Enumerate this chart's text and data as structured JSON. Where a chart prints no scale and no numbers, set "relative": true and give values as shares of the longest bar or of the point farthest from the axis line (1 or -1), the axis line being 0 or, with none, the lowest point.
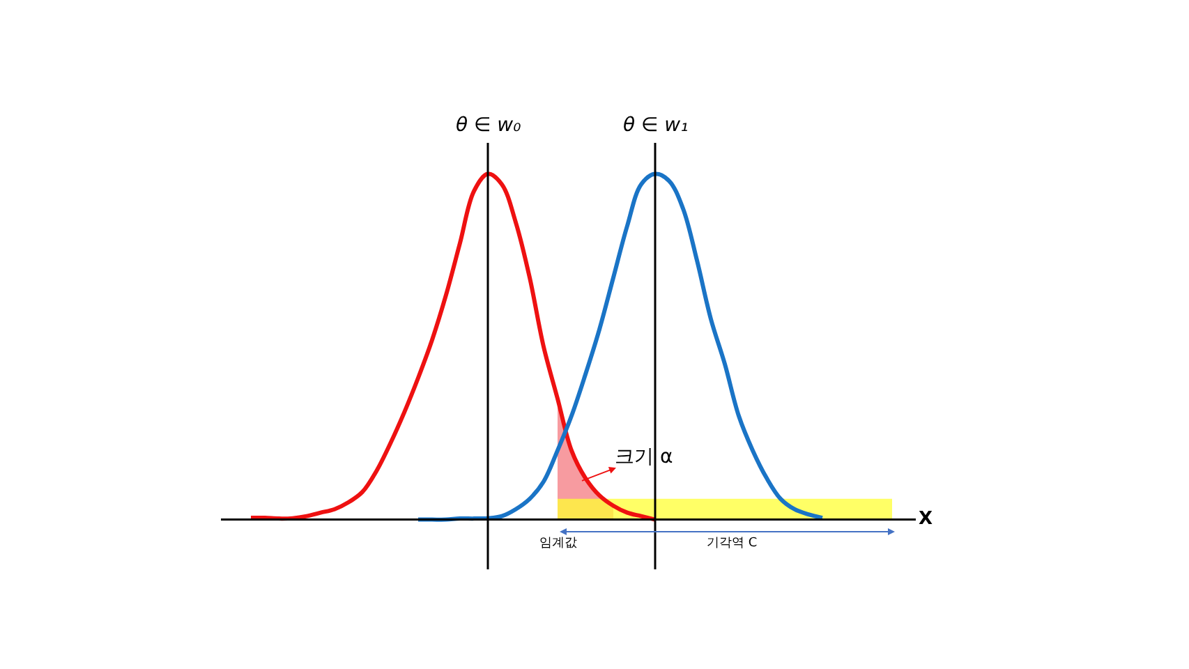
{
  "chart_data": {
    "type": "line",
    "relative": true,
    "legend": false,
    "xlabel": "X",
    "categories": [
      null,
      null,
      null,
      null,
      null,
      null,
      null,
      null,
      null,
      null,
      null,
      null,
      null,
      null,
      null,
      null,
      null,
      null,
      null,
      null,
      null,
      null,
      null,
      null,
      null,
      null,
      null,
      null,
      null,
      null,
      null,
      null,
      null,
      null,
      null,
      null,
      null,
      null,
      null,
      null,
      null,
      null,
      null,
      null,
      null,
      null,
      null,
      null,
      null,
      null
    ],
    "series": [
      {
        "type": "area",
        "color": "#f47a80",
        "values": [
          null,
          null,
          null,
          null,
          null,
          null,
          null,
          null,
          null,
          null,
          null,
          null,
          null,
          null,
          null,
          null,
          null,
          null,
          null,
          null,
          null,
          null,
          null,
          null,
          0.35,
          0.2,
          0.12,
          0.07,
          0.04,
          null,
          null,
          null,
          null,
          null,
          null,
          null,
          null,
          null,
          null,
          null,
          null,
          null,
          null,
          null,
          null,
          null,
          null,
          null,
          null,
          null
        ]
      },
      {
        "type": "area",
        "color": "#ffff33",
        "values": [
          null,
          null,
          null,
          null,
          null,
          null,
          null,
          null,
          null,
          null,
          null,
          null,
          null,
          null,
          null,
          null,
          null,
          null,
          null,
          null,
          null,
          null,
          null,
          null,
          0.06,
          0.06,
          0.06,
          0.06,
          0.06,
          0.06,
          0.06,
          0.06,
          0.06,
          0.06,
          0.06,
          0.06,
          0.06,
          0.06,
          0.06,
          0.06,
          0.06,
          0.06,
          0.06,
          0.06,
          0.06,
          0.06,
          0.06,
          0.06,
          0.06,
          null
        ]
      },
      {
        "name": "θ ∈ w₀",
        "color": "#ee1111",
        "values": [
          null,
          null,
          0.005,
          0.005,
          0.003,
          0.004,
          0.01,
          0.02,
          0.03,
          0.05,
          0.08,
          0.14,
          0.22,
          0.31,
          0.41,
          0.52,
          0.65,
          0.8,
          0.95,
          1.0,
          0.97,
          0.86,
          0.7,
          0.5,
          0.35,
          0.2,
          0.12,
          0.07,
          0.04,
          0.02,
          0.01,
          0.0,
          null,
          null,
          null,
          null,
          null,
          null,
          null,
          null,
          null,
          null,
          null,
          null,
          null,
          null,
          null,
          null,
          null,
          null
        ]
      },
      {
        "name": "θ ∈ w₁",
        "color": "#1a74c6",
        "values": [
          null,
          null,
          null,
          null,
          null,
          null,
          null,
          null,
          null,
          null,
          null,
          null,
          null,
          null,
          0.0,
          0.0,
          0.0,
          0.003,
          0.003,
          0.004,
          0.01,
          0.03,
          0.06,
          0.11,
          0.2,
          0.3,
          0.42,
          0.55,
          0.7,
          0.85,
          0.97,
          1.0,
          0.98,
          0.9,
          0.75,
          0.58,
          0.45,
          0.3,
          0.2,
          0.12,
          0.06,
          0.03,
          0.015,
          0.005,
          null,
          null,
          null,
          null,
          null,
          null
        ]
      }
    ],
    "annotations": [
      "크기 α",
      "임계값",
      "기각역 C"
    ]
  }
}
